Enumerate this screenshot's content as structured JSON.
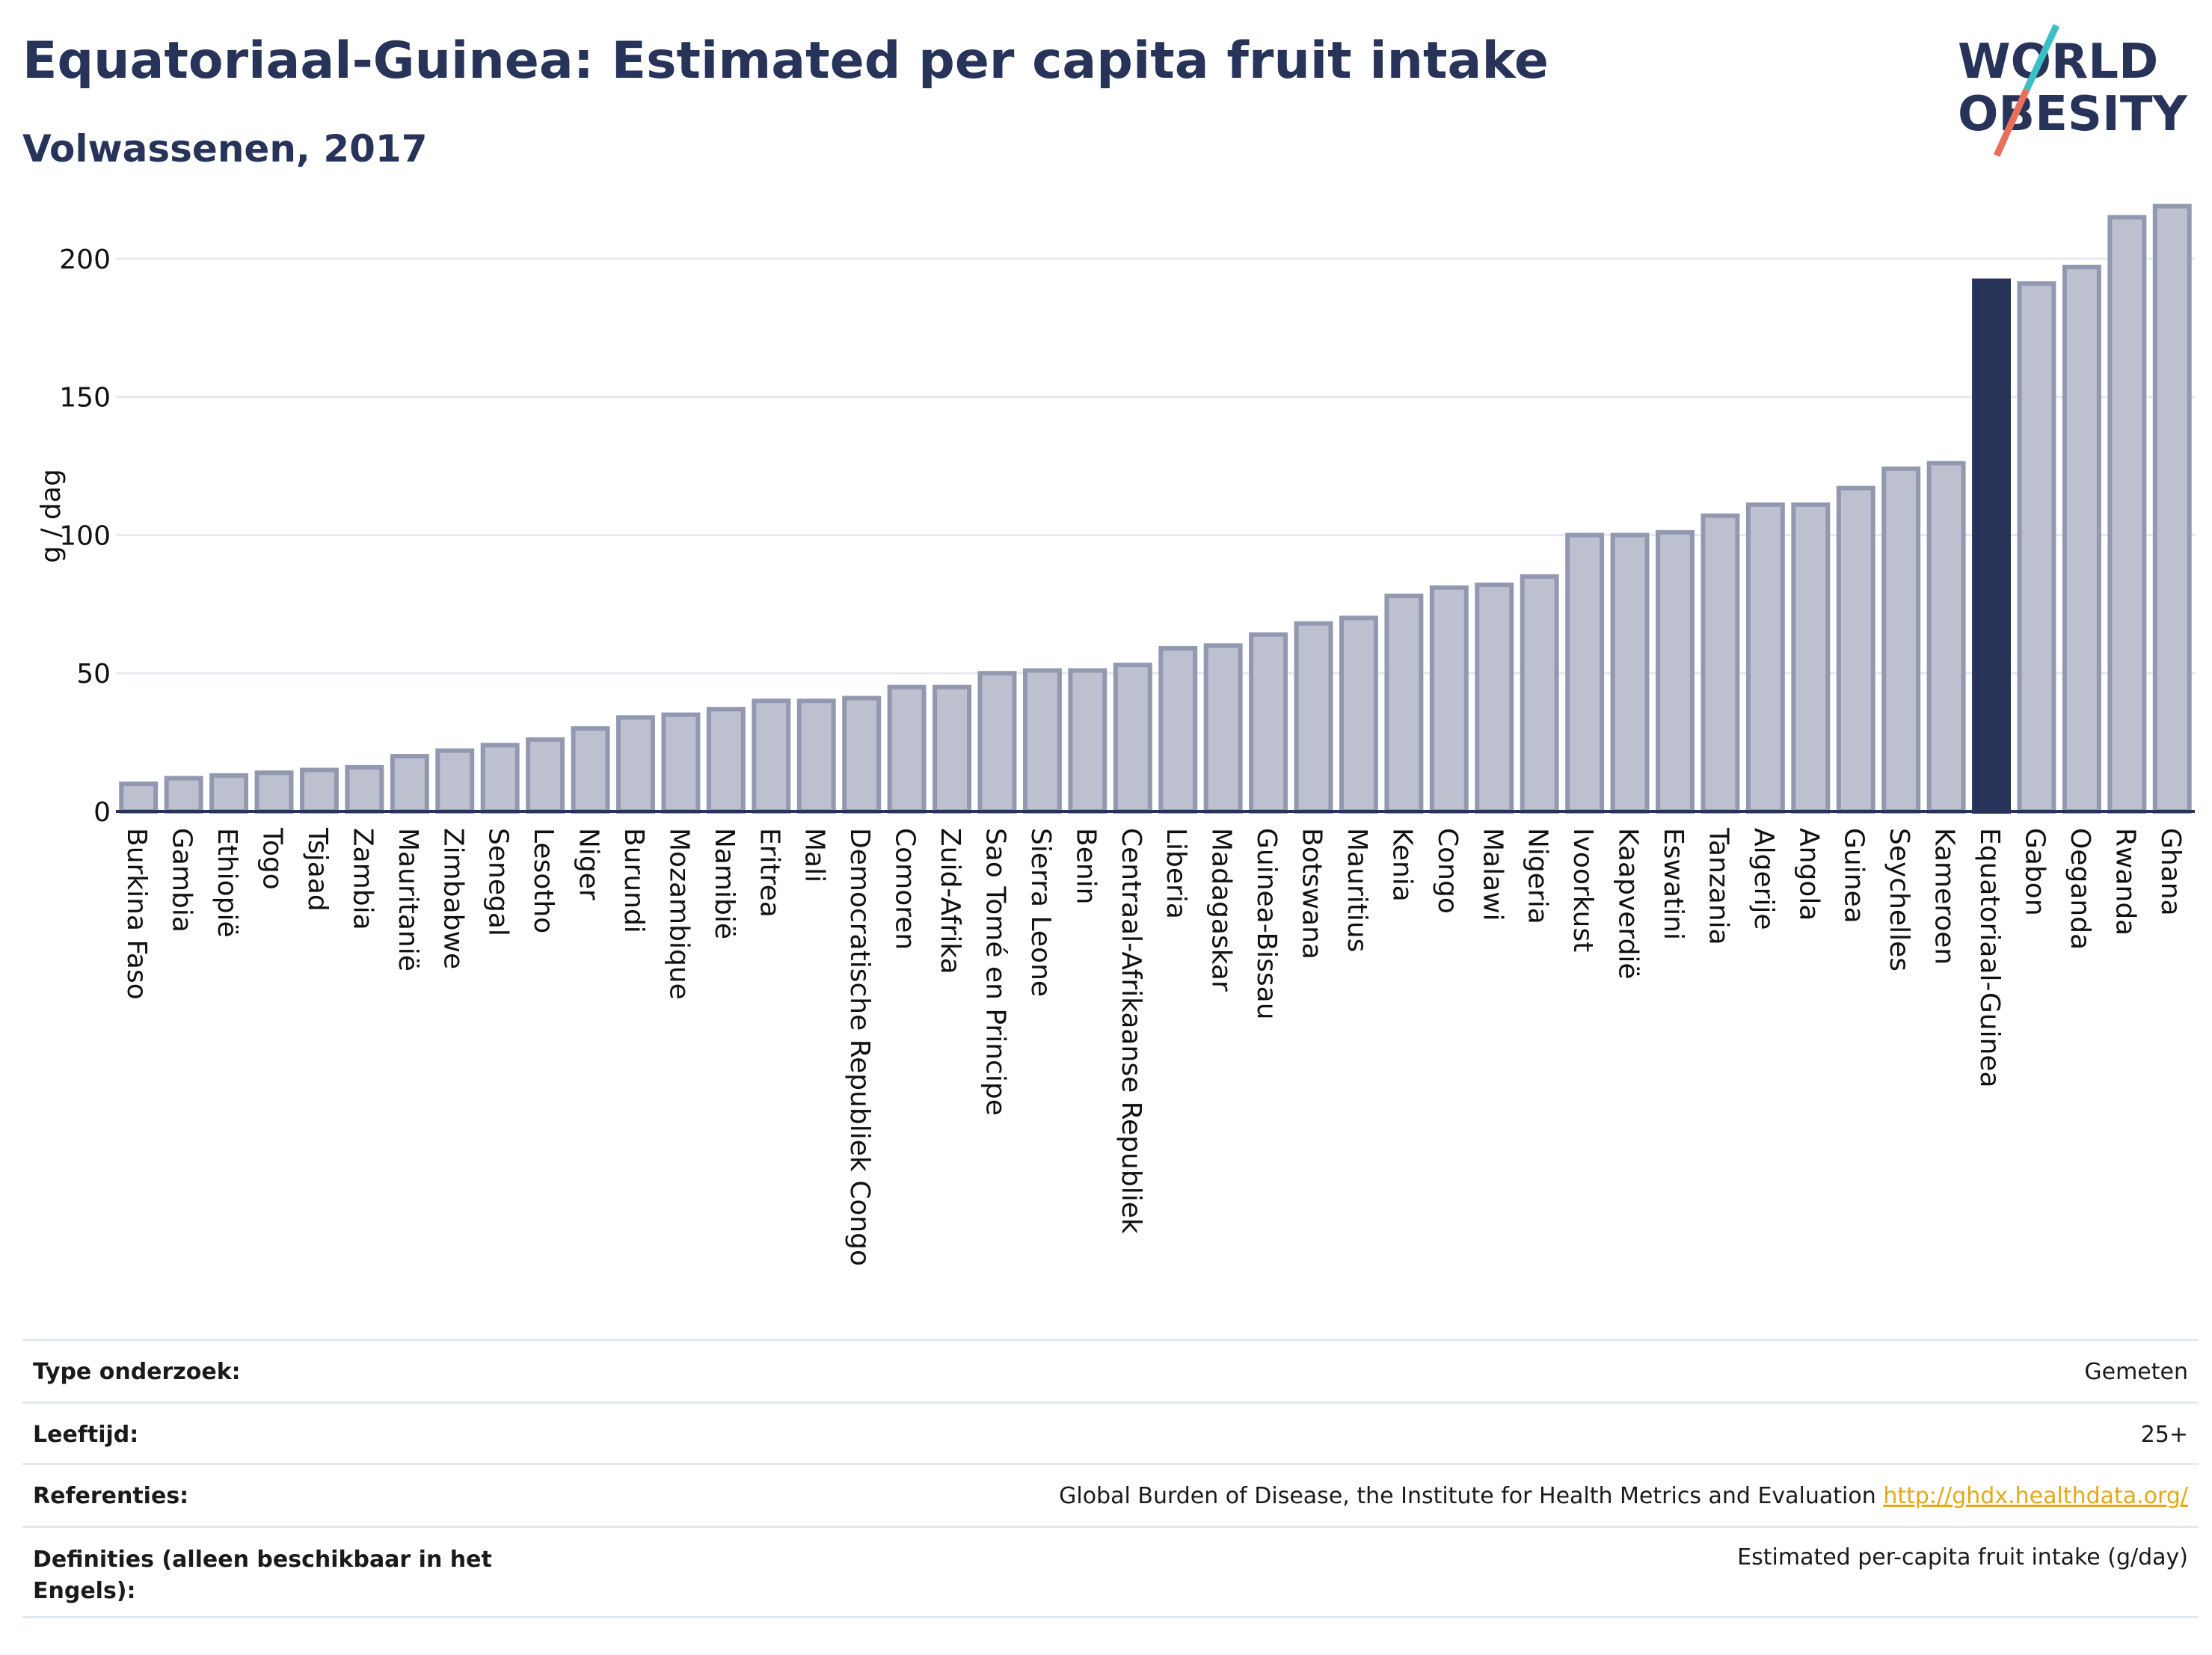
{
  "header": {
    "title": "Equatoriaal-Guinea: Estimated per capita fruit intake",
    "subtitle": "Volwassenen, 2017"
  },
  "logo": {
    "line1": "WORLD",
    "line2": "OBESITY",
    "colors": {
      "text": "#273359",
      "slash_top": "#3bbfc4",
      "slash_bottom": "#e8705a"
    }
  },
  "colors": {
    "bar": "#bcc0cf",
    "bar_border": "#9298b0",
    "highlight": "#273359",
    "grid": "#e6eaee",
    "axis_line": "#273359"
  },
  "chart_data": {
    "type": "bar",
    "title": "Equatoriaal-Guinea: Estimated per capita fruit intake",
    "subtitle": "Volwassenen, 2017",
    "xlabel": "",
    "ylabel": "g / dag",
    "ylim": [
      0,
      220
    ],
    "yticks": [
      0,
      50,
      100,
      150,
      200
    ],
    "grid": true,
    "highlight": "Equatoriaal-Guinea",
    "categories": [
      "Burkina Faso",
      "Gambia",
      "Ethiopië",
      "Togo",
      "Tsjaad",
      "Zambia",
      "Mauritanië",
      "Zimbabwe",
      "Senegal",
      "Lesotho",
      "Niger",
      "Burundi",
      "Mozambique",
      "Namibië",
      "Eritrea",
      "Mali",
      "Democratische Republiek Congo",
      "Comoren",
      "Zuid-Afrika",
      "Sao Tomé en Principe",
      "Sierra Leone",
      "Benin",
      "Centraal-Afrikaanse Republiek",
      "Liberia",
      "Madagaskar",
      "Guinea-Bissau",
      "Botswana",
      "Mauritius",
      "Kenia",
      "Congo",
      "Malawi",
      "Nigeria",
      "Ivoorkust",
      "Kaapverdië",
      "Eswatini",
      "Tanzania",
      "Algerije",
      "Angola",
      "Guinea",
      "Seychelles",
      "Kameroen",
      "Equatoriaal-Guinea",
      "Gabon",
      "Oeganda",
      "Rwanda",
      "Ghana"
    ],
    "values": [
      10,
      12,
      13,
      14,
      15,
      16,
      20,
      22,
      24,
      26,
      30,
      34,
      35,
      37,
      40,
      40,
      41,
      45,
      45,
      50,
      51,
      51,
      53,
      59,
      60,
      64,
      68,
      70,
      78,
      81,
      82,
      85,
      100,
      100,
      101,
      107,
      111,
      111,
      117,
      124,
      126,
      192,
      191,
      197,
      215,
      219
    ]
  },
  "info": [
    {
      "label": "Type onderzoek:",
      "value": "Gemeten"
    },
    {
      "label": "Leeftijd:",
      "value": "25+"
    },
    {
      "label": "Referenties:",
      "value": "Global Burden of Disease, the Institute for Health Metrics and Evaluation",
      "link": "http://ghdx.healthdata.org/"
    },
    {
      "label": "Definities (alleen beschikbaar in het Engels):",
      "value": "Estimated per-capita fruit intake (g/day)"
    }
  ]
}
